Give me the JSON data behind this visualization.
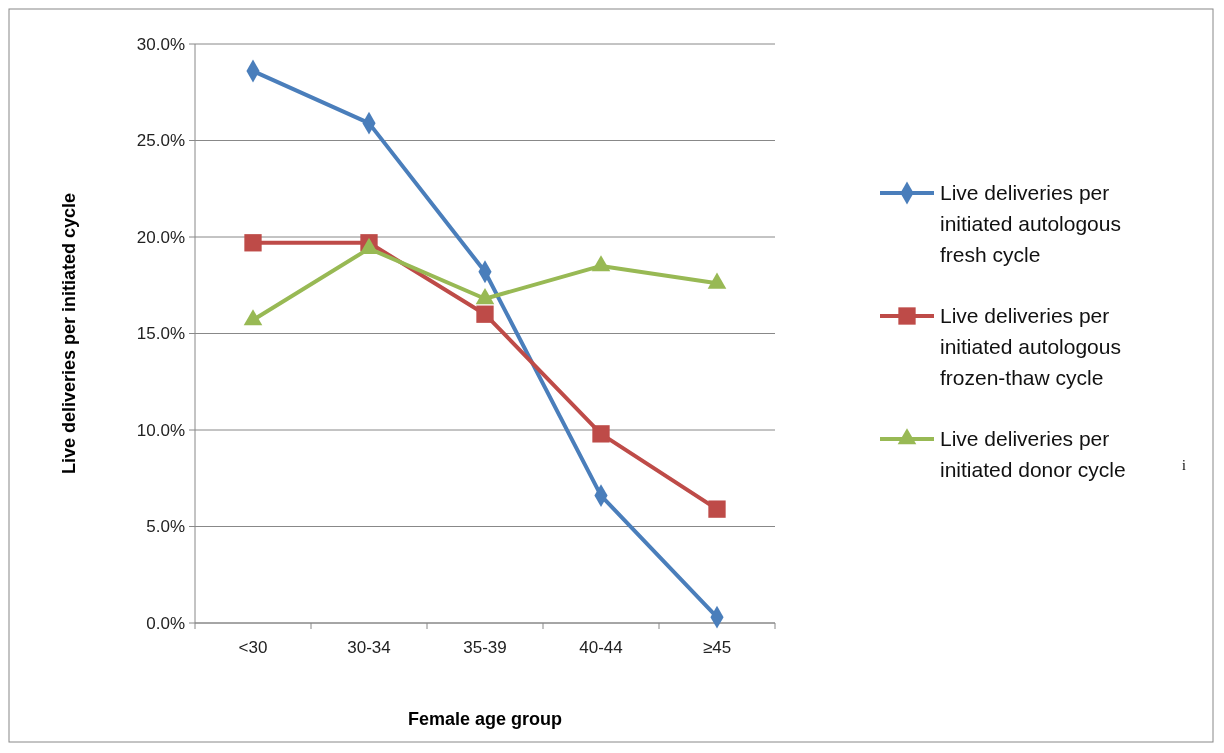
{
  "chart_data": {
    "type": "line",
    "xlabel": "Female age group",
    "ylabel": "Live deliveries per initiated cycle",
    "categories": [
      "<30",
      "30-34",
      "35-39",
      "40-44",
      "≥45"
    ],
    "ylim": [
      0,
      30
    ],
    "yticks": [
      {
        "value": 0,
        "label": "0.0%"
      },
      {
        "value": 5,
        "label": "5.0%"
      },
      {
        "value": 10,
        "label": "10.0%"
      },
      {
        "value": 15,
        "label": "15.0%"
      },
      {
        "value": 20,
        "label": "20.0%"
      },
      {
        "value": 25,
        "label": "25.0%"
      },
      {
        "value": 30,
        "label": "30.0%"
      }
    ],
    "grid": "y",
    "legend": "right",
    "line_style": "solid",
    "series": [
      {
        "name": "Live deliveries per initiated autologous fresh cycle",
        "color": "#4a7ebb",
        "marker": "diamond",
        "values": [
          28.6,
          25.9,
          18.2,
          6.6,
          0.3
        ]
      },
      {
        "name": "Live deliveries per initiated autologous frozen-thaw cycle",
        "color": "#be4b48",
        "marker": "square",
        "values": [
          19.7,
          19.7,
          16.0,
          9.8,
          5.9
        ]
      },
      {
        "name": "Live deliveries per initiated donor cycle",
        "color": "#98b954",
        "marker": "triangle",
        "values": [
          15.7,
          19.4,
          16.8,
          18.5,
          17.6
        ]
      }
    ],
    "annotations": [
      "i"
    ]
  }
}
